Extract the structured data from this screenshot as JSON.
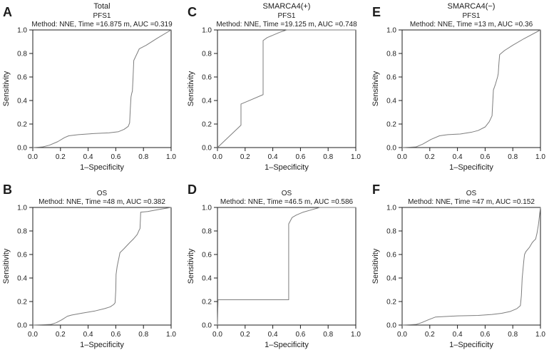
{
  "figure": {
    "background": "#ffffff",
    "curve_color": "#7d7d7d",
    "axis_color": "#1c1c1c",
    "text_color": "#1c1c1c",
    "xlabel": "1–Specificity",
    "ylabel": "Sensitivity",
    "tick_labels": [
      "0.0",
      "0.2",
      "0.4",
      "0.6",
      "0.8",
      "1.0"
    ],
    "tick_values": [
      0,
      0.2,
      0.4,
      0.6,
      0.8,
      1.0
    ]
  },
  "chart_data": [
    {
      "type": "line",
      "panel_label": "A",
      "title_lines": [
        "Total",
        "PFS1",
        "Method: NNE, Time =16.875 m, AUC =0.319"
      ],
      "group": "Total",
      "endpoint": "PFS1",
      "method": "NNE",
      "time": "16.875 m",
      "auc": 0.319,
      "xlabel": "1–Specificity",
      "ylabel": "Sensitivity",
      "xlim": [
        0,
        1
      ],
      "ylim": [
        0,
        1
      ],
      "points": [
        [
          0,
          0
        ],
        [
          0.07,
          0.005
        ],
        [
          0.12,
          0.02
        ],
        [
          0.18,
          0.05
        ],
        [
          0.23,
          0.085
        ],
        [
          0.26,
          0.1
        ],
        [
          0.33,
          0.11
        ],
        [
          0.45,
          0.12
        ],
        [
          0.55,
          0.125
        ],
        [
          0.62,
          0.135
        ],
        [
          0.66,
          0.155
        ],
        [
          0.69,
          0.18
        ],
        [
          0.7,
          0.21
        ],
        [
          0.705,
          0.33
        ],
        [
          0.71,
          0.43
        ],
        [
          0.715,
          0.46
        ],
        [
          0.72,
          0.48
        ],
        [
          0.725,
          0.6
        ],
        [
          0.73,
          0.74
        ],
        [
          0.77,
          0.84
        ],
        [
          0.82,
          0.87
        ],
        [
          0.9,
          0.93
        ],
        [
          1,
          1
        ]
      ]
    },
    {
      "type": "line",
      "panel_label": "C",
      "title_lines": [
        "SMARCA4(+)",
        "PFS1",
        "Method: NNE, Time =19.125 m, AUC =0.748"
      ],
      "group": "SMARCA4(+)",
      "endpoint": "PFS1",
      "method": "NNE",
      "time": "19.125 m",
      "auc": 0.748,
      "xlabel": "1–Specificity",
      "ylabel": "Sensitivity",
      "xlim": [
        0,
        1
      ],
      "ylim": [
        0,
        1
      ],
      "points": [
        [
          0,
          0
        ],
        [
          0.17,
          0.19
        ],
        [
          0.17,
          0.37
        ],
        [
          0.21,
          0.39
        ],
        [
          0.33,
          0.45
        ],
        [
          0.33,
          0.91
        ],
        [
          0.36,
          0.935
        ],
        [
          0.4,
          0.955
        ],
        [
          0.45,
          0.98
        ],
        [
          0.5,
          1
        ],
        [
          1,
          1
        ]
      ]
    },
    {
      "type": "line",
      "panel_label": "E",
      "title_lines": [
        "SMARCA4(−)",
        "PFS1",
        "Method: NNE, Time =13 m, AUC =0.36"
      ],
      "group": "SMARCA4(−)",
      "endpoint": "PFS1",
      "method": "NNE",
      "time": "13 m",
      "auc": 0.36,
      "xlabel": "1–Specificity",
      "ylabel": "Sensitivity",
      "xlim": [
        0,
        1
      ],
      "ylim": [
        0,
        1
      ],
      "points": [
        [
          0,
          0
        ],
        [
          0.1,
          0.005
        ],
        [
          0.15,
          0.03
        ],
        [
          0.21,
          0.07
        ],
        [
          0.27,
          0.1
        ],
        [
          0.33,
          0.11
        ],
        [
          0.42,
          0.115
        ],
        [
          0.5,
          0.13
        ],
        [
          0.55,
          0.145
        ],
        [
          0.6,
          0.175
        ],
        [
          0.63,
          0.22
        ],
        [
          0.65,
          0.27
        ],
        [
          0.655,
          0.38
        ],
        [
          0.66,
          0.49
        ],
        [
          0.675,
          0.54
        ],
        [
          0.69,
          0.6
        ],
        [
          0.695,
          0.63
        ],
        [
          0.7,
          0.72
        ],
        [
          0.705,
          0.79
        ],
        [
          0.74,
          0.825
        ],
        [
          0.8,
          0.87
        ],
        [
          0.88,
          0.925
        ],
        [
          1,
          1
        ]
      ]
    },
    {
      "type": "line",
      "panel_label": "B",
      "title_lines": [
        "OS",
        "Method: NNE, Time =48 m, AUC =0.382"
      ],
      "group": "Total",
      "endpoint": "OS",
      "method": "NNE",
      "time": "48 m",
      "auc": 0.382,
      "xlabel": "1–Specificity",
      "ylabel": "Sensitivity",
      "xlim": [
        0,
        1
      ],
      "ylim": [
        0,
        1
      ],
      "points": [
        [
          0,
          0
        ],
        [
          0.13,
          0.005
        ],
        [
          0.17,
          0.02
        ],
        [
          0.21,
          0.045
        ],
        [
          0.25,
          0.075
        ],
        [
          0.28,
          0.085
        ],
        [
          0.35,
          0.1
        ],
        [
          0.45,
          0.12
        ],
        [
          0.52,
          0.14
        ],
        [
          0.56,
          0.155
        ],
        [
          0.585,
          0.175
        ],
        [
          0.595,
          0.19
        ],
        [
          0.6,
          0.3
        ],
        [
          0.602,
          0.43
        ],
        [
          0.61,
          0.5
        ],
        [
          0.625,
          0.585
        ],
        [
          0.63,
          0.615
        ],
        [
          0.66,
          0.65
        ],
        [
          0.7,
          0.7
        ],
        [
          0.73,
          0.735
        ],
        [
          0.755,
          0.77
        ],
        [
          0.77,
          0.81
        ],
        [
          0.775,
          0.82
        ],
        [
          0.778,
          0.9
        ],
        [
          0.78,
          0.96
        ],
        [
          0.83,
          0.965
        ],
        [
          0.9,
          0.98
        ],
        [
          1,
          1
        ]
      ]
    },
    {
      "type": "line",
      "panel_label": "D",
      "title_lines": [
        "OS",
        "Method: NNE, Time =46.5 m, AUC =0.586"
      ],
      "group": "SMARCA4(+)",
      "endpoint": "OS",
      "method": "NNE",
      "time": "46.5 m",
      "auc": 0.586,
      "xlabel": "1–Specificity",
      "ylabel": "Sensitivity",
      "xlim": [
        0,
        1
      ],
      "ylim": [
        0,
        1
      ],
      "points": [
        [
          0,
          0
        ],
        [
          0.004,
          0.215
        ],
        [
          0.515,
          0.215
        ],
        [
          0.515,
          0.86
        ],
        [
          0.54,
          0.915
        ],
        [
          0.57,
          0.935
        ],
        [
          0.62,
          0.96
        ],
        [
          0.68,
          0.98
        ],
        [
          0.74,
          1
        ],
        [
          1,
          1
        ]
      ]
    },
    {
      "type": "line",
      "panel_label": "F",
      "title_lines": [
        "OS",
        "Method: NNE, Time =47 m, AUC =0.152"
      ],
      "group": "SMARCA4(−)",
      "endpoint": "OS",
      "method": "NNE",
      "time": "47 m",
      "auc": 0.152,
      "xlabel": "1–Specificity",
      "ylabel": "Sensitivity",
      "xlim": [
        0,
        1
      ],
      "ylim": [
        0,
        1
      ],
      "points": [
        [
          0,
          0
        ],
        [
          0.1,
          0.005
        ],
        [
          0.14,
          0.02
        ],
        [
          0.19,
          0.045
        ],
        [
          0.24,
          0.068
        ],
        [
          0.3,
          0.072
        ],
        [
          0.4,
          0.078
        ],
        [
          0.55,
          0.082
        ],
        [
          0.65,
          0.09
        ],
        [
          0.72,
          0.1
        ],
        [
          0.78,
          0.115
        ],
        [
          0.83,
          0.14
        ],
        [
          0.855,
          0.165
        ],
        [
          0.862,
          0.25
        ],
        [
          0.868,
          0.4
        ],
        [
          0.872,
          0.45
        ],
        [
          0.88,
          0.55
        ],
        [
          0.885,
          0.6
        ],
        [
          0.895,
          0.625
        ],
        [
          0.92,
          0.66
        ],
        [
          0.94,
          0.7
        ],
        [
          0.955,
          0.72
        ],
        [
          0.965,
          0.73
        ],
        [
          0.975,
          0.78
        ],
        [
          0.985,
          0.85
        ],
        [
          0.99,
          0.9
        ],
        [
          0.995,
          0.95
        ],
        [
          1,
          1
        ]
      ]
    }
  ]
}
